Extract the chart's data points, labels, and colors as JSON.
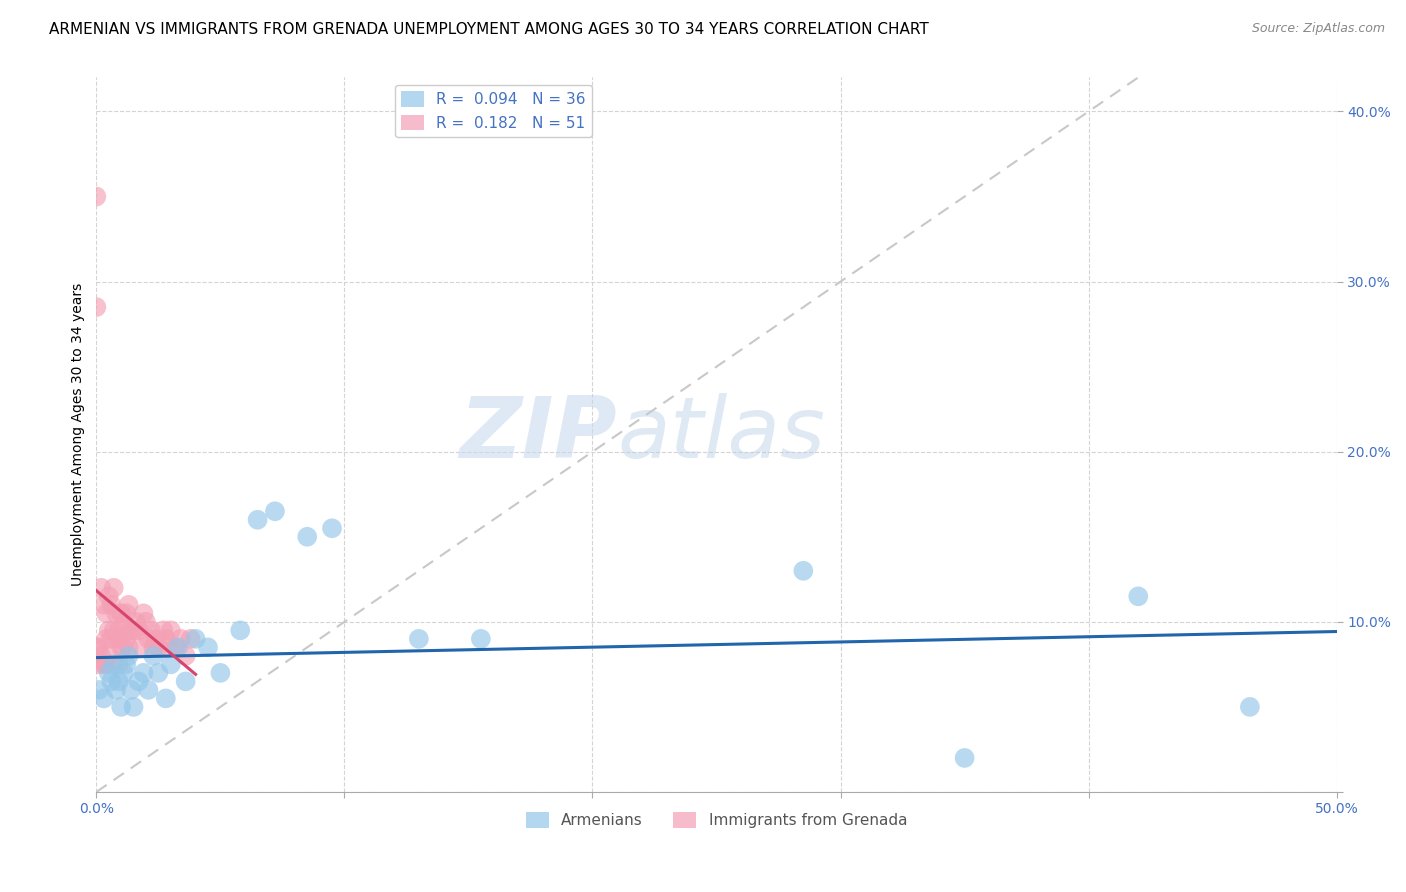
{
  "title": "ARMENIAN VS IMMIGRANTS FROM GRENADA UNEMPLOYMENT AMONG AGES 30 TO 34 YEARS CORRELATION CHART",
  "source": "Source: ZipAtlas.com",
  "ylabel": "Unemployment Among Ages 30 to 34 years",
  "xlim": [
    0.0,
    0.5
  ],
  "ylim": [
    0.0,
    0.42
  ],
  "xticks": [
    0.0,
    0.1,
    0.2,
    0.3,
    0.4,
    0.5
  ],
  "yticks": [
    0.0,
    0.1,
    0.2,
    0.3,
    0.4
  ],
  "xtick_labels": [
    "0.0%",
    "",
    "",
    "",
    "",
    "50.0%"
  ],
  "ytick_labels_right": [
    "",
    "10.0%",
    "20.0%",
    "30.0%",
    "40.0%"
  ],
  "armenians_x": [
    0.001,
    0.003,
    0.005,
    0.006,
    0.007,
    0.008,
    0.009,
    0.01,
    0.011,
    0.012,
    0.013,
    0.014,
    0.015,
    0.017,
    0.019,
    0.021,
    0.023,
    0.025,
    0.028,
    0.03,
    0.033,
    0.036,
    0.04,
    0.045,
    0.05,
    0.058,
    0.065,
    0.072,
    0.085,
    0.095,
    0.13,
    0.155,
    0.285,
    0.35,
    0.42,
    0.465
  ],
  "armenians_y": [
    0.06,
    0.055,
    0.07,
    0.065,
    0.075,
    0.06,
    0.065,
    0.05,
    0.07,
    0.075,
    0.08,
    0.06,
    0.05,
    0.065,
    0.07,
    0.06,
    0.08,
    0.07,
    0.055,
    0.075,
    0.085,
    0.065,
    0.09,
    0.085,
    0.07,
    0.095,
    0.16,
    0.165,
    0.15,
    0.155,
    0.09,
    0.09,
    0.13,
    0.02,
    0.115,
    0.05
  ],
  "grenada_x": [
    0.0,
    0.0,
    0.0,
    0.001,
    0.001,
    0.002,
    0.002,
    0.003,
    0.003,
    0.004,
    0.004,
    0.004,
    0.005,
    0.005,
    0.005,
    0.006,
    0.006,
    0.007,
    0.007,
    0.008,
    0.008,
    0.009,
    0.009,
    0.01,
    0.01,
    0.011,
    0.011,
    0.012,
    0.012,
    0.013,
    0.013,
    0.014,
    0.015,
    0.016,
    0.017,
    0.018,
    0.019,
    0.02,
    0.021,
    0.022,
    0.023,
    0.024,
    0.025,
    0.027,
    0.028,
    0.029,
    0.03,
    0.032,
    0.034,
    0.036,
    0.038
  ],
  "grenada_y": [
    0.35,
    0.285,
    0.085,
    0.085,
    0.075,
    0.12,
    0.08,
    0.11,
    0.075,
    0.105,
    0.09,
    0.075,
    0.115,
    0.095,
    0.08,
    0.11,
    0.09,
    0.12,
    0.095,
    0.105,
    0.09,
    0.075,
    0.095,
    0.105,
    0.085,
    0.1,
    0.085,
    0.105,
    0.09,
    0.11,
    0.085,
    0.095,
    0.095,
    0.1,
    0.095,
    0.085,
    0.105,
    0.1,
    0.09,
    0.095,
    0.085,
    0.09,
    0.085,
    0.095,
    0.09,
    0.085,
    0.095,
    0.085,
    0.09,
    0.08,
    0.09
  ],
  "armenian_color": "#93c6e8",
  "grenada_color": "#f4a0b5",
  "armenian_line_color": "#2166ac",
  "grenada_line_color": "#d6456e",
  "diagonal_color": "#c8c8c8",
  "background_color": "#ffffff",
  "grid_color": "#d0d0d0",
  "watermark_zip": "ZIP",
  "watermark_atlas": "atlas",
  "title_fontsize": 11,
  "axis_label_fontsize": 10,
  "tick_fontsize": 10,
  "legend_fontsize": 11,
  "source_fontsize": 9,
  "r_armenian": "0.094",
  "n_armenian": "36",
  "r_grenada": "0.182",
  "n_grenada": "51"
}
